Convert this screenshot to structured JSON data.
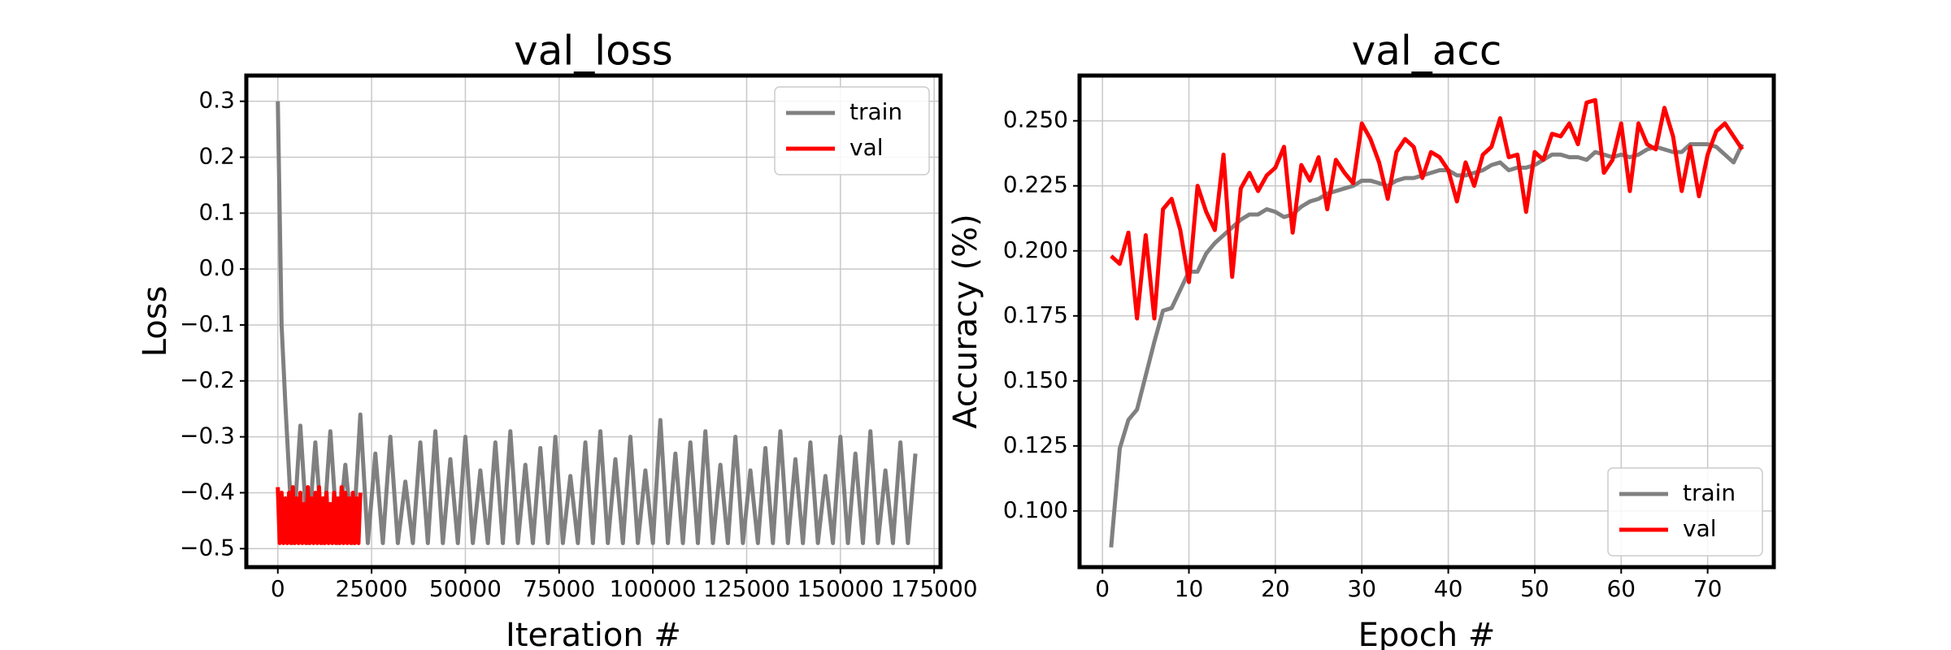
{
  "chart_data": [
    {
      "type": "line",
      "title": "val_loss",
      "x_label": "Iteration #",
      "y_label": "Loss",
      "xlim": [
        -8400,
        176700
      ],
      "ylim": [
        -0.533,
        0.346
      ],
      "xticks": [
        0,
        25000,
        50000,
        75000,
        100000,
        125000,
        150000,
        175000
      ],
      "yticks": [
        {
          "value": -0.5,
          "label": "−0.5"
        },
        {
          "value": -0.4,
          "label": "−0.4"
        },
        {
          "value": -0.3,
          "label": "−0.3"
        },
        {
          "value": -0.2,
          "label": "−0.2"
        },
        {
          "value": -0.1,
          "label": "−0.1"
        },
        {
          "value": 0.0,
          "label": "0.0"
        },
        0.1,
        0.2,
        0.3
      ],
      "grid": true,
      "legend": "upper right",
      "series": [
        {
          "name": "train",
          "color": "#808080",
          "x": [
            0,
            1000,
            2000,
            4000,
            6000,
            8000,
            10000,
            12000,
            14000,
            16000,
            18000,
            20000,
            22000,
            24000,
            26000,
            28000,
            30000,
            32000,
            34000,
            36000,
            38000,
            40000,
            42000,
            44000,
            46000,
            48000,
            50000,
            52000,
            54000,
            56000,
            58000,
            60000,
            62000,
            64000,
            66000,
            68000,
            70000,
            72000,
            74000,
            76000,
            78000,
            80000,
            82000,
            84000,
            86000,
            88000,
            90000,
            92000,
            94000,
            96000,
            98000,
            100000,
            102000,
            104000,
            106000,
            108000,
            110000,
            112000,
            114000,
            116000,
            118000,
            120000,
            122000,
            124000,
            126000,
            128000,
            130000,
            132000,
            134000,
            136000,
            138000,
            140000,
            142000,
            144000,
            146000,
            148000,
            150000,
            152000,
            154000,
            156000,
            158000,
            160000,
            162000,
            164000,
            166000,
            168000,
            170000
          ],
          "values": [
            0.3,
            -0.1,
            -0.24,
            -0.49,
            -0.28,
            -0.49,
            -0.31,
            -0.49,
            -0.29,
            -0.49,
            -0.35,
            -0.49,
            -0.26,
            -0.49,
            -0.33,
            -0.49,
            -0.3,
            -0.49,
            -0.38,
            -0.49,
            -0.31,
            -0.49,
            -0.29,
            -0.49,
            -0.34,
            -0.49,
            -0.3,
            -0.49,
            -0.36,
            -0.49,
            -0.31,
            -0.49,
            -0.29,
            -0.49,
            -0.35,
            -0.49,
            -0.32,
            -0.49,
            -0.3,
            -0.49,
            -0.37,
            -0.49,
            -0.31,
            -0.49,
            -0.29,
            -0.49,
            -0.34,
            -0.49,
            -0.3,
            -0.49,
            -0.36,
            -0.49,
            -0.27,
            -0.49,
            -0.33,
            -0.49,
            -0.31,
            -0.49,
            -0.29,
            -0.49,
            -0.35,
            -0.49,
            -0.3,
            -0.49,
            -0.36,
            -0.49,
            -0.32,
            -0.49,
            -0.29,
            -0.49,
            -0.34,
            -0.49,
            -0.31,
            -0.49,
            -0.37,
            -0.49,
            -0.3,
            -0.49,
            -0.33,
            -0.49,
            -0.29,
            -0.49,
            -0.36,
            -0.49,
            -0.31,
            -0.49,
            -0.33
          ]
        },
        {
          "name": "val",
          "color": "#ff0000",
          "x": [
            0,
            500,
            1000,
            1500,
            2000,
            2500,
            3000,
            3500,
            4000,
            4500,
            5000,
            5500,
            6000,
            6500,
            7000,
            7500,
            8000,
            8500,
            9000,
            9500,
            10000,
            10500,
            11000,
            11500,
            12000,
            12500,
            13000,
            13500,
            14000,
            14500,
            15000,
            15500,
            16000,
            16500,
            17000,
            17500,
            18000,
            18500,
            19000,
            19500,
            20000,
            20500,
            21000,
            21500,
            22000
          ],
          "values": [
            -0.39,
            -0.49,
            -0.4,
            -0.49,
            -0.41,
            -0.49,
            -0.4,
            -0.49,
            -0.39,
            -0.49,
            -0.41,
            -0.49,
            -0.4,
            -0.49,
            -0.42,
            -0.49,
            -0.39,
            -0.49,
            -0.41,
            -0.49,
            -0.4,
            -0.49,
            -0.39,
            -0.49,
            -0.41,
            -0.49,
            -0.4,
            -0.49,
            -0.42,
            -0.49,
            -0.4,
            -0.49,
            -0.41,
            -0.49,
            -0.39,
            -0.49,
            -0.4,
            -0.49,
            -0.41,
            -0.49,
            -0.4,
            -0.49,
            -0.41,
            -0.49,
            -0.4
          ]
        }
      ]
    },
    {
      "type": "line",
      "title": "val_acc",
      "x_label": "Epoch #",
      "y_label": "Accuracy (%)",
      "xlim": [
        -2.65,
        77.65
      ],
      "ylim": [
        0.0784,
        0.2674
      ],
      "xticks": [
        0,
        10,
        20,
        30,
        40,
        50,
        60,
        70
      ],
      "yticks": [
        {
          "value": 0.1,
          "label": "0.100"
        },
        0.125,
        {
          "value": 0.15,
          "label": "0.150"
        },
        0.175,
        {
          "value": 0.2,
          "label": "0.200"
        },
        0.225,
        {
          "value": 0.25,
          "label": "0.250"
        }
      ],
      "grid": true,
      "legend": "lower right",
      "series": [
        {
          "name": "train",
          "color": "#808080",
          "x": [
            1,
            2,
            3,
            4,
            5,
            6,
            7,
            8,
            9,
            10,
            11,
            12,
            13,
            14,
            15,
            16,
            17,
            18,
            19,
            20,
            21,
            22,
            23,
            24,
            25,
            26,
            27,
            28,
            29,
            30,
            31,
            32,
            33,
            34,
            35,
            36,
            37,
            38,
            39,
            40,
            41,
            42,
            43,
            44,
            45,
            46,
            47,
            48,
            49,
            50,
            51,
            52,
            53,
            54,
            55,
            56,
            57,
            58,
            59,
            60,
            61,
            62,
            63,
            64,
            65,
            66,
            67,
            68,
            69,
            70,
            71,
            72,
            73,
            74
          ],
          "values": [
            0.086,
            0.124,
            0.135,
            0.139,
            0.152,
            0.165,
            0.177,
            0.178,
            0.185,
            0.192,
            0.192,
            0.199,
            0.203,
            0.206,
            0.209,
            0.212,
            0.214,
            0.214,
            0.216,
            0.215,
            0.213,
            0.214,
            0.217,
            0.219,
            0.22,
            0.222,
            0.223,
            0.224,
            0.225,
            0.227,
            0.227,
            0.226,
            0.225,
            0.227,
            0.228,
            0.228,
            0.229,
            0.23,
            0.231,
            0.231,
            0.229,
            0.229,
            0.23,
            0.231,
            0.233,
            0.234,
            0.231,
            0.232,
            0.232,
            0.233,
            0.235,
            0.237,
            0.237,
            0.236,
            0.236,
            0.235,
            0.238,
            0.237,
            0.236,
            0.237,
            0.236,
            0.237,
            0.239,
            0.24,
            0.239,
            0.238,
            0.238,
            0.241,
            0.241,
            0.241,
            0.24,
            0.237,
            0.234,
            0.241
          ]
        },
        {
          "name": "val",
          "color": "#ff0000",
          "x": [
            1,
            2,
            3,
            4,
            5,
            6,
            7,
            8,
            9,
            10,
            11,
            12,
            13,
            14,
            15,
            16,
            17,
            18,
            19,
            20,
            21,
            22,
            23,
            24,
            25,
            26,
            27,
            28,
            29,
            30,
            31,
            32,
            33,
            34,
            35,
            36,
            37,
            38,
            39,
            40,
            41,
            42,
            43,
            44,
            45,
            46,
            47,
            48,
            49,
            50,
            51,
            52,
            53,
            54,
            55,
            56,
            57,
            58,
            59,
            60,
            61,
            62,
            63,
            64,
            65,
            66,
            67,
            68,
            69,
            70,
            71,
            72,
            73,
            74
          ],
          "values": [
            0.198,
            0.195,
            0.207,
            0.174,
            0.206,
            0.174,
            0.216,
            0.22,
            0.208,
            0.188,
            0.225,
            0.215,
            0.208,
            0.237,
            0.19,
            0.224,
            0.23,
            0.223,
            0.229,
            0.232,
            0.24,
            0.207,
            0.233,
            0.227,
            0.236,
            0.216,
            0.235,
            0.23,
            0.226,
            0.249,
            0.243,
            0.234,
            0.22,
            0.238,
            0.243,
            0.24,
            0.228,
            0.238,
            0.236,
            0.231,
            0.219,
            0.234,
            0.225,
            0.237,
            0.24,
            0.251,
            0.236,
            0.237,
            0.215,
            0.238,
            0.235,
            0.245,
            0.244,
            0.249,
            0.241,
            0.257,
            0.258,
            0.23,
            0.235,
            0.249,
            0.223,
            0.249,
            0.241,
            0.239,
            0.255,
            0.244,
            0.223,
            0.24,
            0.221,
            0.237,
            0.246,
            0.249,
            0.244,
            0.239
          ]
        }
      ]
    }
  ]
}
